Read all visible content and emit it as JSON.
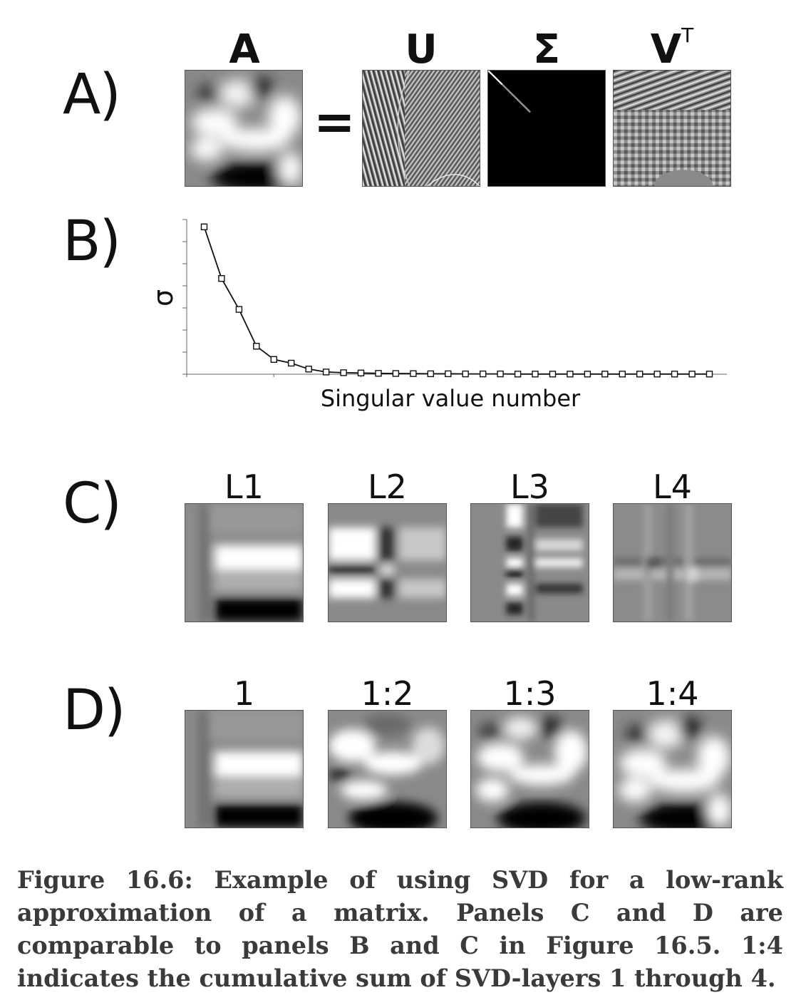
{
  "panel_labels": {
    "a": "A)",
    "b": "B)",
    "c": "C)",
    "d": "D)"
  },
  "panel_a": {
    "matrix_a_title": "A",
    "equals_sign": "=",
    "u_title": "U",
    "sigma_title": "Σ",
    "vt_title": "V",
    "vt_superscript": "T"
  },
  "panel_c": {
    "titles": [
      "L1",
      "L2",
      "L3",
      "L4"
    ]
  },
  "panel_d": {
    "titles": [
      "1",
      "1:2",
      "1:3",
      "1:4"
    ]
  },
  "chart_data": {
    "type": "line",
    "title": "",
    "xlabel": "Singular value number",
    "ylabel": "σ",
    "x": [
      1,
      2,
      3,
      4,
      5,
      6,
      7,
      8,
      9,
      10,
      11,
      12,
      13,
      14,
      15,
      16,
      17,
      18,
      19,
      20,
      21,
      22,
      23,
      24,
      25,
      26,
      27,
      28,
      29,
      30
    ],
    "values": [
      100,
      65,
      44,
      19,
      10,
      7.5,
      3.5,
      1.5,
      1,
      0.8,
      0.6,
      0.5,
      0.4,
      0.3,
      0.3,
      0.2,
      0.2,
      0.2,
      0.1,
      0.1,
      0.1,
      0.1,
      0.1,
      0.1,
      0.1,
      0.1,
      0.1,
      0.1,
      0.1,
      0.1
    ],
    "ylim": [
      0,
      105
    ],
    "xlim": [
      0,
      31
    ],
    "marker": "square",
    "grid": false,
    "tick_labels_shown": false
  },
  "caption": "Figure 16.6: Example of using SVD for a low-rank approximation of a matrix. Panels C and D are comparable to panels B and C in Figure 16.5. 1:4 indicates the cumulative sum of SVD-layers 1 through 4."
}
